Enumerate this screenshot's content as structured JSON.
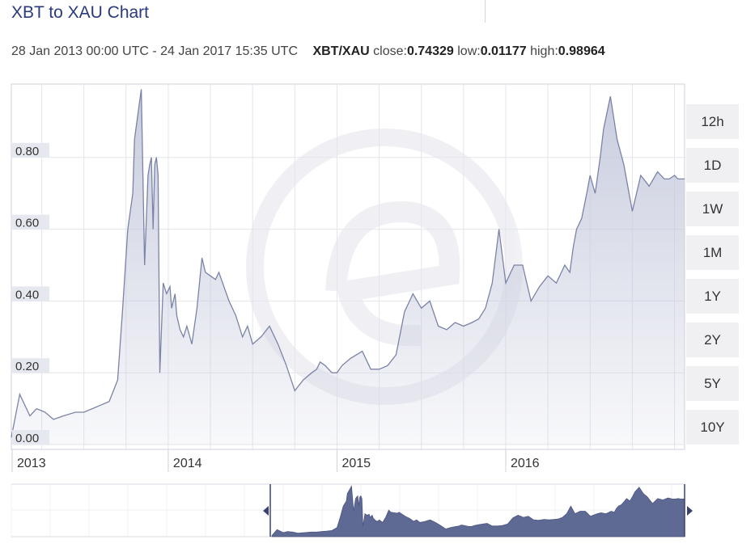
{
  "header": {
    "title": "XBT to XAU Chart",
    "range": "28 Jan 2013 00:00 UTC - 24 Jan 2017 15:35 UTC",
    "pair": "XBT/XAU",
    "close_label": "close:",
    "close_value": "0.74329",
    "low_label": "low:",
    "low_value": "0.01177",
    "high_label": "high:",
    "high_value": "0.98964"
  },
  "range_buttons": [
    "12h",
    "1D",
    "1W",
    "1M",
    "1Y",
    "2Y",
    "5Y",
    "10Y"
  ],
  "colors": {
    "line": "#7b83a6",
    "area_top": "#c5c9dc",
    "navigator_fill": "#5f6a94",
    "title": "#2a3a7c"
  },
  "chart_data": {
    "type": "area",
    "title": "XBT to XAU Chart",
    "series": [
      {
        "name": "XBT/XAU",
        "x": [
          2013.07,
          2013.12,
          2013.18,
          2013.22,
          2013.27,
          2013.32,
          2013.38,
          2013.45,
          2013.5,
          2013.55,
          2013.6,
          2013.65,
          2013.7,
          2013.73,
          2013.76,
          2013.79,
          2013.8,
          2013.82,
          2013.84,
          2013.86,
          2013.88,
          2013.89,
          2013.9,
          2013.91,
          2013.92,
          2013.93,
          2013.94,
          2013.95,
          2013.97,
          2013.99,
          2014.01,
          2014.02,
          2014.03,
          2014.04,
          2014.05,
          2014.07,
          2014.09,
          2014.11,
          2014.14,
          2014.17,
          2014.2,
          2014.22,
          2014.25,
          2014.28,
          2014.3,
          2014.33,
          2014.36,
          2014.4,
          2014.44,
          2014.47,
          2014.5,
          2014.55,
          2014.6,
          2014.65,
          2014.7,
          2014.75,
          2014.8,
          2014.85,
          2014.88,
          2014.9,
          2014.93,
          2014.97,
          2015.0,
          2015.03,
          2015.08,
          2015.15,
          2015.2,
          2015.25,
          2015.3,
          2015.35,
          2015.4,
          2015.45,
          2015.5,
          2015.55,
          2015.6,
          2015.65,
          2015.7,
          2015.75,
          2015.8,
          2015.84,
          2015.88,
          2015.92,
          2015.96,
          2016.0,
          2016.05,
          2016.1,
          2016.15,
          2016.2,
          2016.25,
          2016.3,
          2016.35,
          2016.38,
          2016.4,
          2016.42,
          2016.45,
          2016.48,
          2016.5,
          2016.53,
          2016.56,
          2016.58,
          2016.62,
          2016.66,
          2016.7,
          2016.75,
          2016.8,
          2016.85,
          2016.9,
          2016.94,
          2016.97,
          2017.0,
          2017.02,
          2017.04,
          2017.06
        ],
        "y": [
          0.02,
          0.14,
          0.08,
          0.1,
          0.09,
          0.07,
          0.08,
          0.09,
          0.09,
          0.1,
          0.11,
          0.12,
          0.18,
          0.38,
          0.6,
          0.7,
          0.85,
          0.92,
          0.99,
          0.5,
          0.75,
          0.78,
          0.8,
          0.6,
          0.78,
          0.8,
          0.75,
          0.2,
          0.45,
          0.42,
          0.44,
          0.38,
          0.4,
          0.42,
          0.36,
          0.32,
          0.3,
          0.33,
          0.28,
          0.38,
          0.52,
          0.48,
          0.47,
          0.46,
          0.48,
          0.44,
          0.4,
          0.36,
          0.3,
          0.33,
          0.28,
          0.3,
          0.33,
          0.28,
          0.22,
          0.15,
          0.18,
          0.2,
          0.21,
          0.23,
          0.22,
          0.2,
          0.2,
          0.22,
          0.24,
          0.26,
          0.21,
          0.21,
          0.22,
          0.25,
          0.37,
          0.42,
          0.38,
          0.4,
          0.33,
          0.32,
          0.34,
          0.33,
          0.34,
          0.35,
          0.38,
          0.45,
          0.6,
          0.45,
          0.5,
          0.5,
          0.4,
          0.44,
          0.47,
          0.45,
          0.5,
          0.48,
          0.55,
          0.6,
          0.63,
          0.7,
          0.75,
          0.7,
          0.8,
          0.88,
          0.97,
          0.85,
          0.78,
          0.65,
          0.75,
          0.72,
          0.76,
          0.74,
          0.74,
          0.75,
          0.74,
          0.74,
          0.74
        ]
      }
    ],
    "y_ticks": [
      "0.00",
      "0.20",
      "0.40",
      "0.60",
      "0.80"
    ],
    "y_tick_values": [
      0,
      0.2,
      0.4,
      0.6,
      0.8
    ],
    "x_ticks": [
      "2013",
      "2014",
      "2015",
      "2016"
    ],
    "x_tick_values": [
      2013.07,
      2014.0,
      2015.0,
      2016.0
    ],
    "xlim": [
      2013.07,
      2017.06
    ],
    "ylim": [
      0,
      1.0
    ],
    "grid": true
  }
}
